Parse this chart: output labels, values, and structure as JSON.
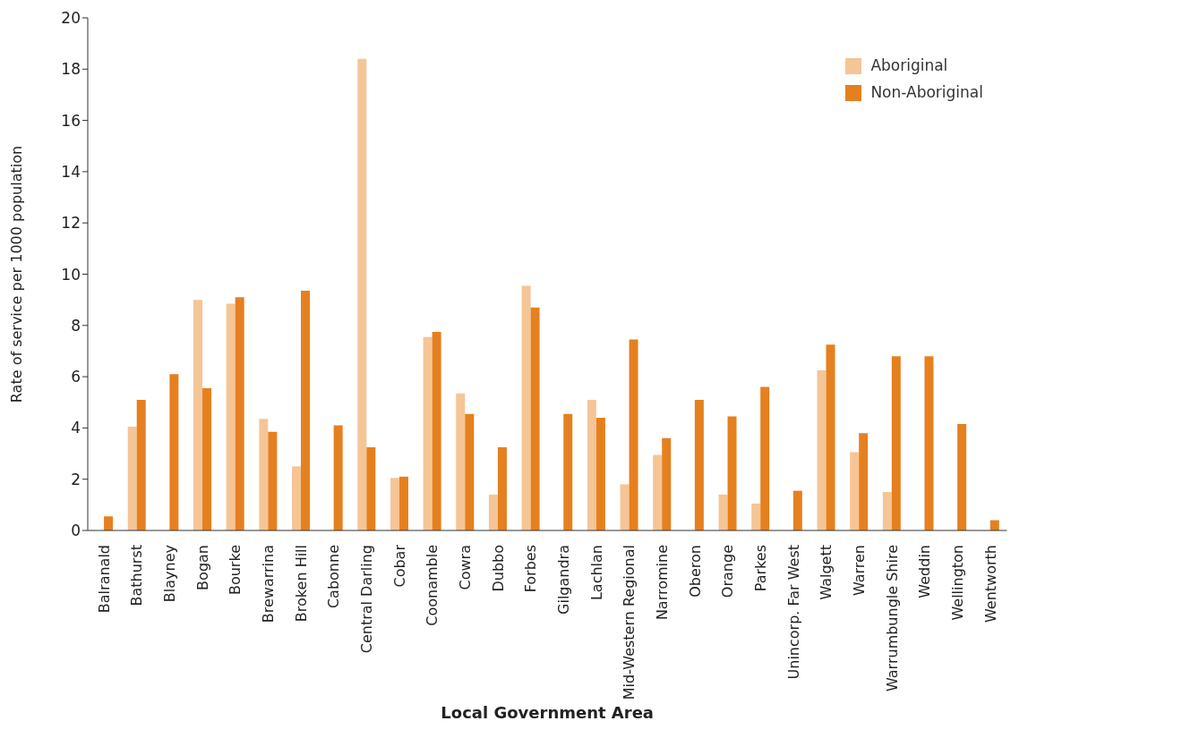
{
  "chart_data": {
    "type": "bar",
    "xlabel": "Local Government Area",
    "ylabel": "Rate of service per 1000 population",
    "categories": [
      "Balranald",
      "Bathurst",
      "Blayney",
      "Bogan",
      "Bourke",
      "Brewarrina",
      "Broken Hill",
      "Cabonne",
      "Central Darling",
      "Cobar",
      "Coonamble",
      "Cowra",
      "Dubbo",
      "Forbes",
      "Gilgandra",
      "Lachlan",
      "Mid-Western Regional",
      "Narromine",
      "Oberon",
      "Orange",
      "Parkes",
      "Unincorp. Far West",
      "Walgett",
      "Warren",
      "Warrumbungle Shire",
      "Weddin",
      "Wellington",
      "Wentworth"
    ],
    "series": [
      {
        "name": "Aboriginal",
        "color": "#f5c596",
        "values": [
          null,
          4.05,
          null,
          9.0,
          8.85,
          4.35,
          2.5,
          null,
          18.4,
          2.05,
          7.55,
          5.35,
          1.4,
          9.55,
          null,
          5.1,
          1.8,
          2.95,
          null,
          1.4,
          1.05,
          null,
          6.25,
          3.05,
          1.5,
          null,
          null,
          null
        ]
      },
      {
        "name": "Non-Aboriginal",
        "color": "#e5801f",
        "values": [
          0.55,
          5.1,
          6.1,
          5.55,
          9.1,
          3.85,
          9.35,
          4.1,
          3.25,
          2.1,
          7.75,
          4.55,
          3.25,
          8.7,
          4.55,
          4.4,
          7.45,
          3.6,
          5.1,
          4.45,
          5.6,
          1.55,
          7.25,
          3.8,
          6.8,
          6.8,
          4.15,
          0.4
        ]
      }
    ],
    "ylim": [
      0,
      20
    ],
    "yticks": [
      0,
      2,
      4,
      6,
      8,
      10,
      12,
      14,
      16,
      18,
      20
    ],
    "grid": false,
    "legend": "top right"
  }
}
